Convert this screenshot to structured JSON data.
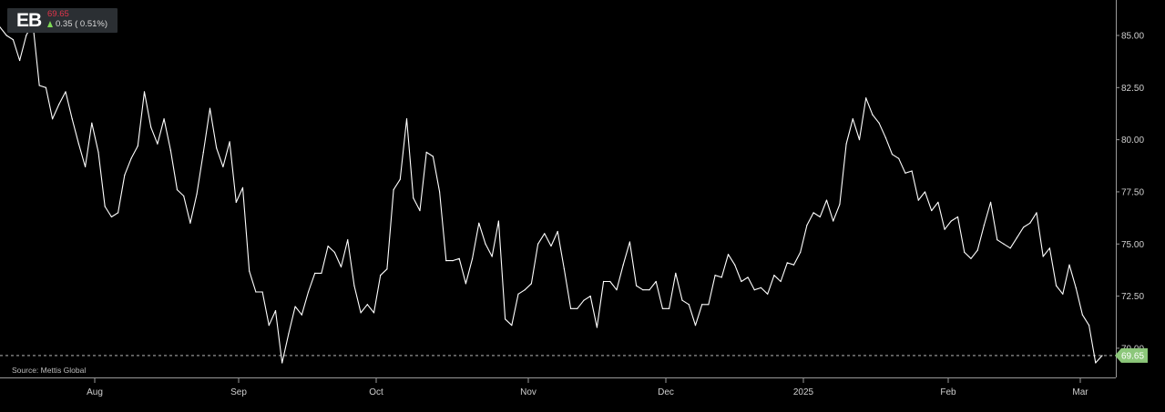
{
  "ticker": {
    "symbol": "EB",
    "price": "69.65",
    "change": "0.35 ( 0.51%)",
    "change_icon": "arrow-up-icon",
    "price_color": "#e0344a",
    "up_color": "#7ed957"
  },
  "source_label": "Source: Mettis Global",
  "chart_data": {
    "type": "line",
    "title": "",
    "xlabel": "",
    "ylabel": "",
    "ylim": [
      68.6,
      86.7
    ],
    "y_ticks": [
      "85.00",
      "82.50",
      "80.00",
      "77.50",
      "75.00",
      "72.50",
      "70.00"
    ],
    "x_ticks": [
      "Aug",
      "Sep",
      "Oct",
      "Nov",
      "Dec",
      "2025",
      "Feb",
      "Mar"
    ],
    "last_value_label": "69.65",
    "last_value": 69.65,
    "line_color": "#ffffff",
    "last_value_color": "#8cc77a",
    "grid": false,
    "series": [
      {
        "values": [
          85.4,
          85.0,
          84.8,
          83.8,
          85.0,
          85.6,
          82.6,
          82.5,
          81.0,
          81.7,
          82.3,
          81.0,
          79.8,
          78.7,
          80.8,
          79.4,
          76.8,
          76.3,
          76.5,
          78.3,
          79.1,
          79.7,
          82.3,
          80.6,
          79.8,
          81.0,
          79.5,
          77.6,
          77.3,
          76.0,
          77.4,
          79.4,
          81.5,
          79.6,
          78.7,
          79.9,
          77.0,
          77.7,
          73.7,
          72.7,
          72.7,
          71.1,
          71.8,
          69.3,
          70.7,
          72.0,
          71.6,
          72.7,
          73.6,
          73.6,
          74.9,
          74.6,
          73.9,
          75.2,
          73.0,
          71.7,
          72.1,
          71.7,
          73.5,
          73.8,
          77.6,
          78.1,
          81.0,
          77.2,
          76.6,
          79.4,
          79.2,
          77.5,
          74.2,
          74.2,
          74.3,
          73.1,
          74.3,
          76.0,
          75.0,
          74.4,
          76.1,
          71.4,
          71.1,
          72.6,
          72.8,
          73.1,
          75.0,
          75.5,
          74.9,
          75.6,
          73.8,
          71.9,
          71.9,
          72.3,
          72.5,
          71.0,
          73.2,
          73.2,
          72.8,
          74.0,
          75.1,
          73.0,
          72.8,
          72.8,
          73.2,
          71.9,
          71.9,
          73.6,
          72.3,
          72.1,
          71.1,
          72.1,
          72.1,
          73.5,
          73.4,
          74.5,
          74.0,
          73.2,
          73.4,
          72.8,
          72.9,
          72.6,
          73.5,
          73.2,
          74.1,
          74.0,
          74.6,
          75.9,
          76.5,
          76.3,
          77.1,
          76.1,
          76.9,
          79.8,
          81.0,
          80.0,
          82.0,
          81.2,
          80.8,
          80.1,
          79.3,
          79.1,
          78.4,
          78.5,
          77.1,
          77.5,
          76.6,
          77.0,
          75.7,
          76.1,
          76.3,
          74.6,
          74.3,
          74.7,
          75.9,
          77.0,
          75.2,
          75.0,
          74.8,
          75.3,
          75.8,
          76.0,
          76.5,
          74.4,
          74.8,
          73.0,
          72.6,
          74.0,
          72.9,
          71.6,
          71.1,
          69.3,
          69.65
        ]
      }
    ]
  }
}
